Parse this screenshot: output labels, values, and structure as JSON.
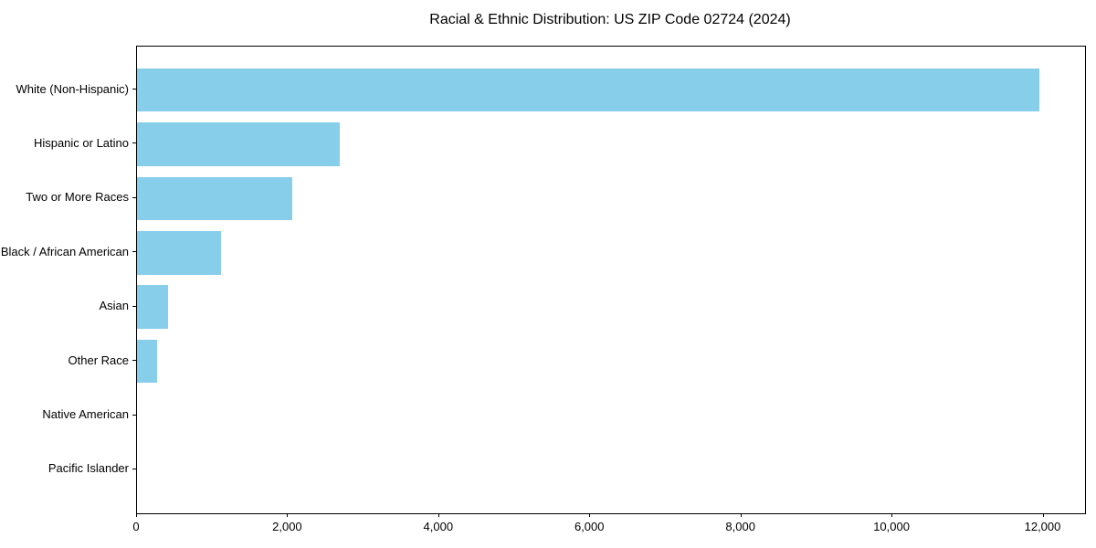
{
  "chart_data": {
    "type": "bar",
    "orientation": "horizontal",
    "title": "Racial & Ethnic Distribution: US ZIP Code 02724 (2024)",
    "categories": [
      "White (Non-Hispanic)",
      "Hispanic or Latino",
      "Two or More Races",
      "Black / African American",
      "Asian",
      "Other Race",
      "Native American",
      "Pacific Islander"
    ],
    "values": [
      11940,
      2680,
      2060,
      1110,
      410,
      260,
      0,
      0
    ],
    "bar_color": "#87CEEB",
    "text_color": "#000000",
    "spine_color": "#000000",
    "xlabel": "",
    "ylabel": "",
    "xlim": [
      0,
      12550
    ],
    "x_ticks": [
      0,
      2000,
      4000,
      6000,
      8000,
      10000,
      12000
    ],
    "x_tick_labels": [
      "0",
      "2,000",
      "4,000",
      "6,000",
      "8,000",
      "10,000",
      "12,000"
    ],
    "grid": false,
    "legend": null
  }
}
